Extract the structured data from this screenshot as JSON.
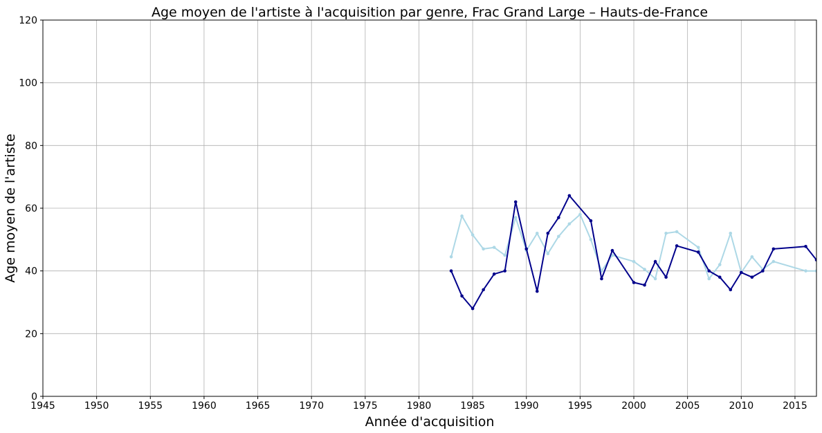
{
  "chart_data": {
    "type": "line",
    "title": "Age moyen de l'artiste à l'acquisition par genre, Frac Grand Large – Hauts-de-France",
    "xlabel": "Année d'acquisition",
    "ylabel": "Age moyen de l'artiste",
    "xlim": [
      1945,
      2017
    ],
    "ylim": [
      0,
      120
    ],
    "x_ticks": [
      1945,
      1950,
      1955,
      1960,
      1965,
      1970,
      1975,
      1980,
      1985,
      1990,
      1995,
      2000,
      2005,
      2010,
      2015
    ],
    "y_ticks": [
      0,
      20,
      40,
      60,
      80,
      100,
      120
    ],
    "grid": true,
    "legend": "none",
    "series": [
      {
        "color": "#00008b",
        "points": [
          [
            1983,
            40
          ],
          [
            1984,
            32
          ],
          [
            1985,
            28
          ],
          [
            1986,
            34
          ],
          [
            1987,
            39
          ],
          [
            1988,
            40
          ],
          [
            1989,
            62
          ],
          [
            1990,
            47
          ],
          [
            1991,
            33.5
          ],
          [
            1992,
            52
          ],
          [
            1993,
            57
          ],
          [
            1994,
            64
          ],
          [
            1996,
            56
          ],
          [
            1997,
            37.5
          ],
          [
            1998,
            46.5
          ],
          [
            2000,
            36.3
          ],
          [
            2001,
            35.5
          ],
          [
            2002,
            43
          ],
          [
            2003,
            38
          ],
          [
            2004,
            48
          ],
          [
            2006,
            46
          ],
          [
            2007,
            40
          ],
          [
            2008,
            38
          ],
          [
            2009,
            34
          ],
          [
            2010,
            39.5
          ],
          [
            2011,
            38
          ],
          [
            2012,
            40
          ],
          [
            2013,
            47
          ],
          [
            2016,
            47.8
          ],
          [
            2017,
            43.5
          ]
        ]
      },
      {
        "color": "#add8e6",
        "points": [
          [
            1983,
            44.5
          ],
          [
            1984,
            57.5
          ],
          [
            1985,
            51.5
          ],
          [
            1986,
            47
          ],
          [
            1987,
            47.5
          ],
          [
            1988,
            45
          ],
          [
            1989,
            57
          ],
          [
            1990,
            46.5
          ],
          [
            1991,
            52
          ],
          [
            1992,
            45.5
          ],
          [
            1993,
            51
          ],
          [
            1994,
            55
          ],
          [
            1995,
            58
          ],
          [
            1996,
            50
          ],
          [
            1997,
            40
          ],
          [
            1998,
            45
          ],
          [
            2000,
            43
          ],
          [
            2001,
            40.5
          ],
          [
            2002,
            37.5
          ],
          [
            2003,
            52
          ],
          [
            2004,
            52.5
          ],
          [
            2006,
            47.5
          ],
          [
            2007,
            37.5
          ],
          [
            2008,
            42
          ],
          [
            2009,
            52
          ],
          [
            2010,
            39.5
          ],
          [
            2011,
            44.5
          ],
          [
            2012,
            40.5
          ],
          [
            2013,
            43
          ],
          [
            2016,
            40
          ],
          [
            2017,
            40
          ]
        ]
      }
    ]
  }
}
